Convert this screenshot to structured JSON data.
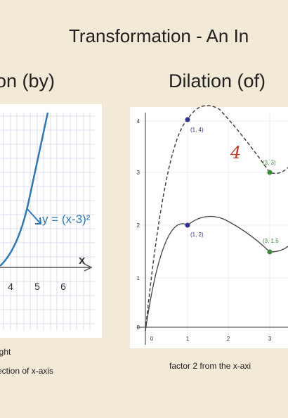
{
  "title": "Transformation - An In",
  "left_panel": {
    "heading": "on (by)",
    "equation": "y = (x-3)²",
    "axis_label": "x",
    "x_tick_labels": [
      "4",
      "5",
      "6"
    ],
    "caption_lines": [
      "ight",
      "ection of x-axis"
    ]
  },
  "right_panel": {
    "heading": "Dilation (of)",
    "handwritten": "4",
    "y_tick_labels": [
      "4",
      "3",
      "2",
      "1",
      "0"
    ],
    "x_tick_labels": [
      "0",
      "1",
      "2",
      "3"
    ],
    "point_labels": [
      "(1, 4)",
      "(1, 2)",
      "(3, 3)",
      "(3, 1.5"
    ],
    "caption": "factor 2 from the  x-axi"
  }
}
